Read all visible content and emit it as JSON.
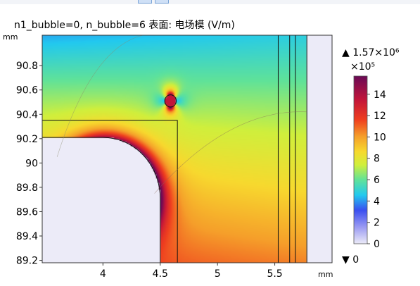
{
  "window": {
    "toolbar_buttons": [
      "button-a",
      "button-b"
    ]
  },
  "plot": {
    "title": "n1_bubble=0, n_bubble=6  表面: 电场模 (V/m)",
    "x_unit": "mm",
    "y_unit": "mm"
  },
  "colorbar": {
    "max_label": "▲ 1.57×10⁶",
    "multiplier": "×10⁵",
    "min_label": "▼ 0",
    "ticks": [
      "0",
      "2",
      "4",
      "6",
      "8",
      "10",
      "12",
      "14"
    ]
  },
  "chart_data": {
    "type": "heatmap",
    "title": "n1_bubble=0, n_bubble=6  表面: 电场模 (V/m)",
    "xlabel": "mm",
    "ylabel": "mm",
    "xlim": [
      3.47,
      6.0
    ],
    "ylim": [
      89.18,
      91.05
    ],
    "x_ticks": [
      4,
      4.5,
      5,
      5.5
    ],
    "x_tick_labels": [
      "4",
      "4.5",
      "5",
      "5.5"
    ],
    "y_ticks": [
      89.2,
      89.4,
      89.6,
      89.8,
      90,
      90.2,
      90.4,
      90.6,
      90.8
    ],
    "y_tick_labels": [
      "89.2",
      "89.4",
      "89.6",
      "89.8",
      "90",
      "90.2",
      "90.4",
      "90.6",
      "90.8"
    ],
    "color_scale": {
      "min": 0,
      "max": 15.7,
      "max_marker": 1570000,
      "min_marker": 0,
      "unit_factor": 100000
    },
    "colormap": [
      "#ecebf8",
      "#9a9af2",
      "#3a4ff0",
      "#22c9ef",
      "#5fe29a",
      "#d0ef3c",
      "#f7d92e",
      "#f59f2a",
      "#ef3e1f",
      "#c2153a",
      "#6a0a56"
    ],
    "field_model": {
      "base_top": 6.5,
      "base_bottom": 11.0,
      "right_reduction": 2.5,
      "bubble": {
        "center": [
          4.59,
          90.51
        ],
        "radius": 0.05,
        "peak": 15.6
      },
      "corner": {
        "center": [
          4.02,
          89.73
        ],
        "radius": 0.48,
        "peak": 16.5
      }
    },
    "regions": {
      "conductor": {
        "x_min": 3.47,
        "x_max": 4.5,
        "y_max": 90.21,
        "corner_radius": 0.5
      },
      "blank_right": {
        "x_min": 5.78
      },
      "inner_box": {
        "x_min": 3.47,
        "x_max": 4.65,
        "y_max": 90.35
      },
      "vertical_lines": [
        5.53,
        5.63,
        5.68
      ]
    }
  }
}
